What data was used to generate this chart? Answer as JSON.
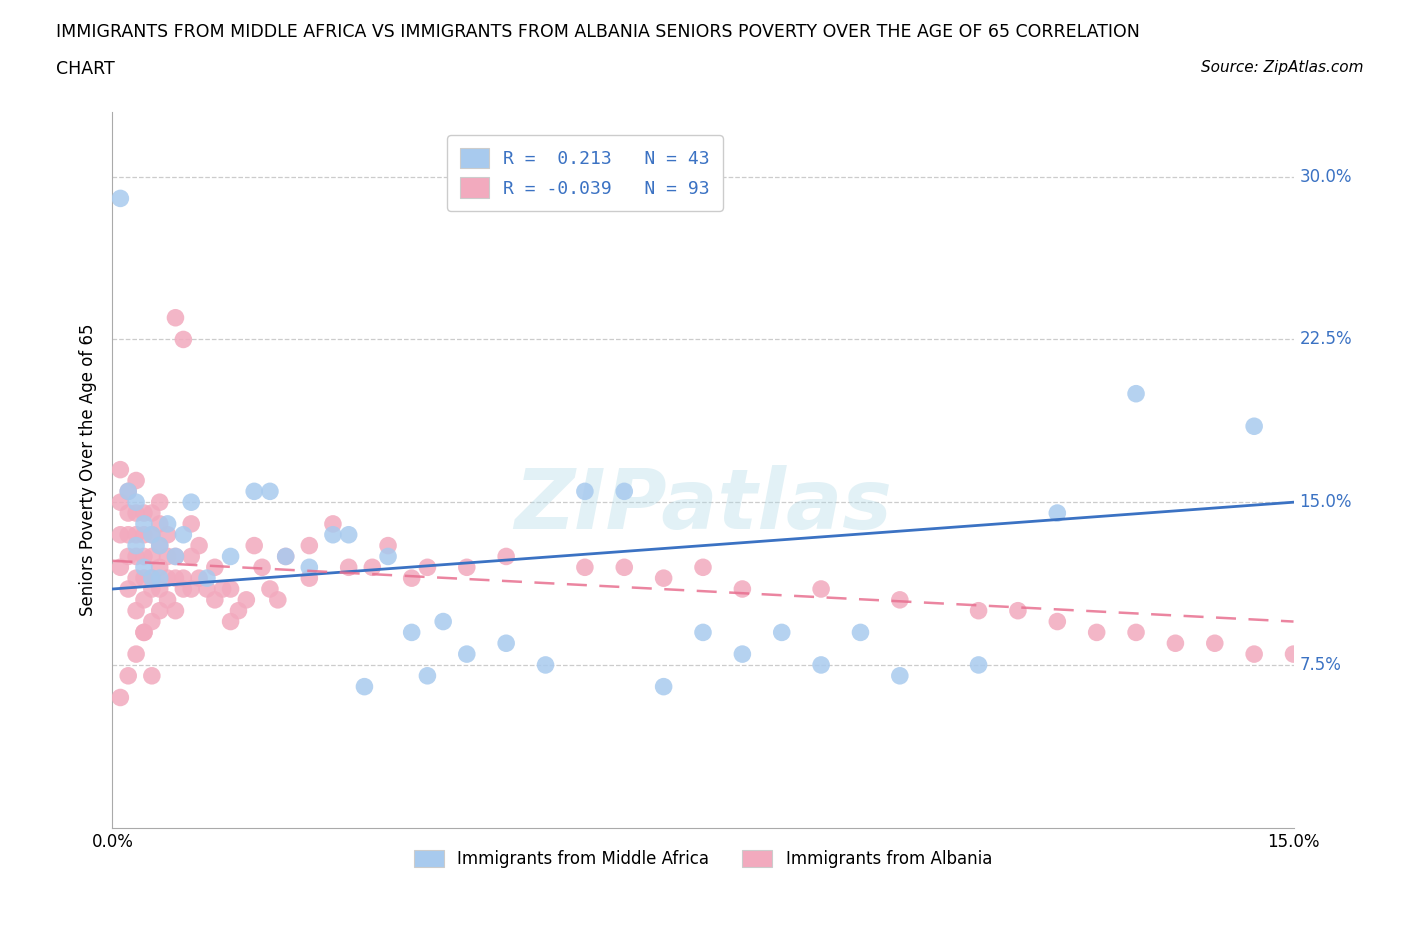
{
  "title_line1": "IMMIGRANTS FROM MIDDLE AFRICA VS IMMIGRANTS FROM ALBANIA SENIORS POVERTY OVER THE AGE OF 65 CORRELATION",
  "title_line2": "CHART",
  "source": "Source: ZipAtlas.com",
  "ylabel": "Seniors Poverty Over the Age of 65",
  "xlim": [
    0.0,
    0.15
  ],
  "ylim": [
    0.0,
    0.33
  ],
  "yticks": [
    0.075,
    0.15,
    0.225,
    0.3
  ],
  "ytick_labels": [
    "7.5%",
    "15.0%",
    "22.5%",
    "30.0%"
  ],
  "xticks": [
    0.0,
    0.03,
    0.06,
    0.09,
    0.12,
    0.15
  ],
  "xtick_labels": [
    "0.0%",
    "",
    "",
    "",
    "",
    "15.0%"
  ],
  "r_blue": 0.213,
  "n_blue": 43,
  "r_pink": -0.039,
  "n_pink": 93,
  "blue_color": "#A8CAEE",
  "pink_color": "#F2AABE",
  "trend_blue": "#3B72C3",
  "trend_pink": "#E87090",
  "watermark": "ZIPatlas",
  "legend_label_blue": "Immigrants from Middle Africa",
  "legend_label_pink": "Immigrants from Albania",
  "blue_scatter_x": [
    0.001,
    0.002,
    0.003,
    0.003,
    0.004,
    0.004,
    0.005,
    0.005,
    0.006,
    0.006,
    0.007,
    0.008,
    0.009,
    0.01,
    0.012,
    0.015,
    0.018,
    0.02,
    0.022,
    0.025,
    0.028,
    0.03,
    0.032,
    0.035,
    0.038,
    0.04,
    0.042,
    0.045,
    0.05,
    0.055,
    0.06,
    0.065,
    0.07,
    0.075,
    0.08,
    0.085,
    0.09,
    0.095,
    0.1,
    0.11,
    0.12,
    0.13,
    0.145
  ],
  "blue_scatter_y": [
    0.29,
    0.155,
    0.13,
    0.15,
    0.12,
    0.14,
    0.115,
    0.135,
    0.115,
    0.13,
    0.14,
    0.125,
    0.135,
    0.15,
    0.115,
    0.125,
    0.155,
    0.155,
    0.125,
    0.12,
    0.135,
    0.135,
    0.065,
    0.125,
    0.09,
    0.07,
    0.095,
    0.08,
    0.085,
    0.075,
    0.155,
    0.155,
    0.065,
    0.09,
    0.08,
    0.09,
    0.075,
    0.09,
    0.07,
    0.075,
    0.145,
    0.2,
    0.185
  ],
  "pink_scatter_x": [
    0.001,
    0.001,
    0.001,
    0.001,
    0.002,
    0.002,
    0.002,
    0.002,
    0.002,
    0.003,
    0.003,
    0.003,
    0.003,
    0.003,
    0.003,
    0.004,
    0.004,
    0.004,
    0.004,
    0.004,
    0.004,
    0.005,
    0.005,
    0.005,
    0.005,
    0.005,
    0.005,
    0.006,
    0.006,
    0.006,
    0.006,
    0.006,
    0.006,
    0.007,
    0.007,
    0.007,
    0.007,
    0.008,
    0.008,
    0.008,
    0.008,
    0.009,
    0.009,
    0.009,
    0.01,
    0.01,
    0.01,
    0.011,
    0.011,
    0.012,
    0.013,
    0.013,
    0.014,
    0.015,
    0.015,
    0.016,
    0.017,
    0.018,
    0.019,
    0.02,
    0.021,
    0.022,
    0.025,
    0.025,
    0.028,
    0.03,
    0.033,
    0.035,
    0.038,
    0.04,
    0.045,
    0.05,
    0.06,
    0.065,
    0.07,
    0.075,
    0.08,
    0.09,
    0.1,
    0.11,
    0.115,
    0.12,
    0.125,
    0.13,
    0.135,
    0.14,
    0.145,
    0.15,
    0.001,
    0.002,
    0.003,
    0.004,
    0.005
  ],
  "pink_scatter_y": [
    0.12,
    0.135,
    0.15,
    0.165,
    0.11,
    0.125,
    0.135,
    0.145,
    0.155,
    0.1,
    0.115,
    0.125,
    0.135,
    0.145,
    0.16,
    0.09,
    0.105,
    0.115,
    0.125,
    0.135,
    0.145,
    0.095,
    0.11,
    0.115,
    0.125,
    0.135,
    0.145,
    0.1,
    0.11,
    0.12,
    0.13,
    0.14,
    0.15,
    0.105,
    0.115,
    0.125,
    0.135,
    0.1,
    0.115,
    0.125,
    0.235,
    0.11,
    0.115,
    0.225,
    0.11,
    0.125,
    0.14,
    0.115,
    0.13,
    0.11,
    0.105,
    0.12,
    0.11,
    0.095,
    0.11,
    0.1,
    0.105,
    0.13,
    0.12,
    0.11,
    0.105,
    0.125,
    0.13,
    0.115,
    0.14,
    0.12,
    0.12,
    0.13,
    0.115,
    0.12,
    0.12,
    0.125,
    0.12,
    0.12,
    0.115,
    0.12,
    0.11,
    0.11,
    0.105,
    0.1,
    0.1,
    0.095,
    0.09,
    0.09,
    0.085,
    0.085,
    0.08,
    0.08,
    0.06,
    0.07,
    0.08,
    0.09,
    0.07
  ]
}
